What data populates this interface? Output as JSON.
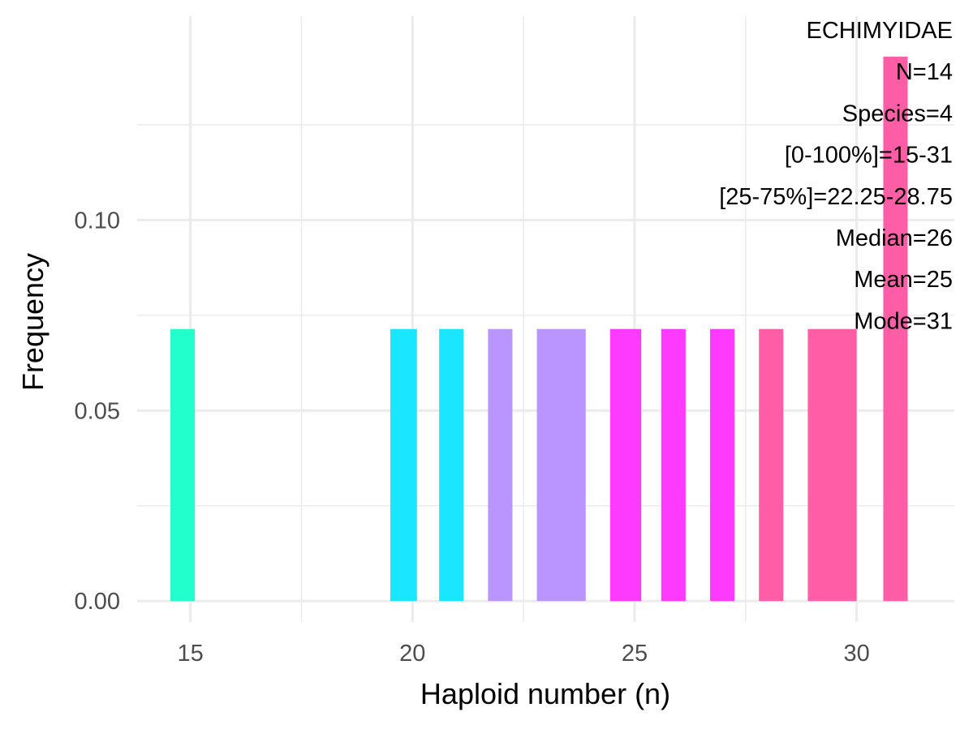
{
  "chart_data": {
    "type": "bar",
    "title": "",
    "xlabel": "Haploid number (n)",
    "ylabel": "Frequency",
    "xlim": [
      13.8,
      32.2
    ],
    "ylim": [
      -0.0055,
      0.1535
    ],
    "x_ticks": [
      15,
      20,
      25,
      30
    ],
    "x_tick_labels": [
      "15",
      "20",
      "25",
      "30"
    ],
    "y_ticks": [
      0.0,
      0.05,
      0.1
    ],
    "y_tick_labels": [
      "0.00",
      "0.05",
      "0.10"
    ],
    "grid": true,
    "legend": "none",
    "bars": [
      {
        "x0": 14.55,
        "x1": 15.1,
        "value": 0.0714,
        "color": "#22FFCC"
      },
      {
        "x0": 19.5,
        "x1": 20.1,
        "value": 0.0714,
        "color": "#1AE6FF"
      },
      {
        "x0": 20.6,
        "x1": 21.15,
        "value": 0.0714,
        "color": "#1AE6FF"
      },
      {
        "x0": 21.7,
        "x1": 22.25,
        "value": 0.0714,
        "color": "#BB95FF"
      },
      {
        "x0": 22.8,
        "x1": 23.9,
        "value": 0.0714,
        "color": "#BB95FF"
      },
      {
        "x0": 24.45,
        "x1": 25.15,
        "value": 0.0714,
        "color": "#FF3AFF"
      },
      {
        "x0": 25.6,
        "x1": 26.15,
        "value": 0.0714,
        "color": "#FF3AFF"
      },
      {
        "x0": 26.7,
        "x1": 27.25,
        "value": 0.0714,
        "color": "#FF3AFF"
      },
      {
        "x0": 27.8,
        "x1": 28.35,
        "value": 0.0714,
        "color": "#FF5EA6"
      },
      {
        "x0": 28.9,
        "x1": 30.0,
        "value": 0.0714,
        "color": "#FF5EA6"
      },
      {
        "x0": 30.6,
        "x1": 31.15,
        "value": 0.1429,
        "color": "#FF5EA6"
      }
    ],
    "annotations": [
      "ECHIMYIDAE",
      "N=14",
      "Species=4",
      "[0-100%]=15-31",
      "[25-75%]=22.25-28.75",
      "Median=26",
      "Mean=25",
      "Mode=31"
    ]
  }
}
